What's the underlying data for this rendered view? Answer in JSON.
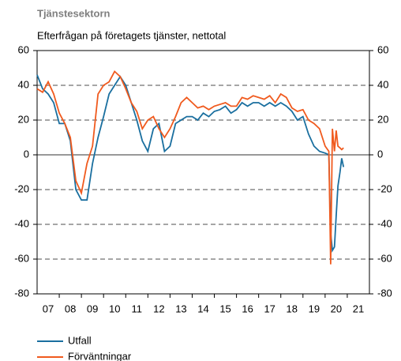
{
  "chart_data": {
    "type": "line",
    "title": "Tjänstesektorn",
    "subtitle": "Efterfrågan på företagets tjänster, nettotal",
    "x": [
      2007,
      2007.25,
      2007.5,
      2007.75,
      2008,
      2008.25,
      2008.5,
      2008.75,
      2009,
      2009.25,
      2009.5,
      2009.75,
      2010,
      2010.25,
      2010.5,
      2010.75,
      2011,
      2011.25,
      2011.5,
      2011.75,
      2012,
      2012.25,
      2012.5,
      2012.75,
      2013,
      2013.25,
      2013.5,
      2013.75,
      2014,
      2014.25,
      2014.5,
      2014.75,
      2015,
      2015.25,
      2015.5,
      2015.75,
      2016,
      2016.25,
      2016.5,
      2016.75,
      2017,
      2017.25,
      2017.5,
      2017.75,
      2018,
      2018.25,
      2018.5,
      2018.75,
      2019,
      2019.25,
      2019.5,
      2019.75,
      2020,
      2020.17,
      2020.25,
      2020.33,
      2020.42,
      2020.5,
      2020.58,
      2020.67,
      2020.75,
      2020.83
    ],
    "series": [
      {
        "name": "Utfall",
        "color": "#1a6f9f",
        "values": [
          46,
          38,
          35,
          30,
          18,
          18,
          8,
          -20,
          -26,
          -26,
          -5,
          10,
          22,
          35,
          40,
          45,
          40,
          30,
          20,
          8,
          2,
          15,
          18,
          2,
          5,
          18,
          20,
          22,
          22,
          20,
          24,
          22,
          25,
          26,
          28,
          24,
          26,
          30,
          28,
          30,
          30,
          28,
          30,
          28,
          30,
          28,
          25,
          20,
          22,
          12,
          5,
          2,
          1,
          0,
          -45,
          -55,
          -53,
          -35,
          -18,
          -10,
          -2,
          -7
        ]
      },
      {
        "name": "Förväntningar",
        "color": "#f05a1e",
        "values": [
          38,
          36,
          42,
          35,
          24,
          18,
          10,
          -15,
          -22,
          -5,
          5,
          35,
          40,
          42,
          48,
          45,
          38,
          30,
          25,
          15,
          20,
          22,
          15,
          10,
          15,
          22,
          30,
          33,
          30,
          27,
          28,
          26,
          28,
          29,
          30,
          28,
          28,
          33,
          32,
          34,
          33,
          32,
          34,
          30,
          35,
          33,
          27,
          25,
          26,
          20,
          18,
          15,
          5,
          2,
          -63,
          15,
          2,
          14,
          5,
          4,
          3,
          4
        ]
      }
    ],
    "xlim": [
      2007,
      2022
    ],
    "xticks": [
      {
        "value": 2007.5,
        "label": "07"
      },
      {
        "value": 2008.5,
        "label": "08"
      },
      {
        "value": 2009.5,
        "label": "09"
      },
      {
        "value": 2010.5,
        "label": "10"
      },
      {
        "value": 2011.5,
        "label": "11"
      },
      {
        "value": 2012.5,
        "label": "12"
      },
      {
        "value": 2013.5,
        "label": "13"
      },
      {
        "value": 2014.5,
        "label": "14"
      },
      {
        "value": 2015.5,
        "label": "15"
      },
      {
        "value": 2016.5,
        "label": "16"
      },
      {
        "value": 2017.5,
        "label": "17"
      },
      {
        "value": 2018.5,
        "label": "18"
      },
      {
        "value": 2019.5,
        "label": "19"
      },
      {
        "value": 2020.5,
        "label": "20"
      },
      {
        "value": 2021.5,
        "label": "21"
      }
    ],
    "ylim": [
      -80,
      60
    ],
    "yticks": [
      -80,
      -60,
      -40,
      -20,
      0,
      20,
      40,
      60
    ],
    "y2lim": [
      -80,
      60
    ],
    "y2ticks": [
      -80,
      -60,
      -40,
      -20,
      0,
      20,
      40,
      60
    ],
    "grid": true
  }
}
